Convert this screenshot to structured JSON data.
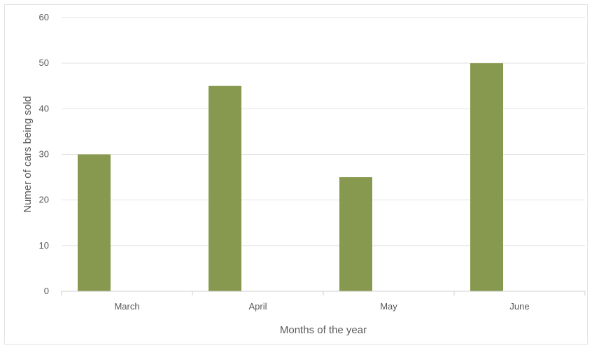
{
  "chart_data": {
    "type": "bar",
    "categories": [
      "March",
      "April",
      "May",
      "June"
    ],
    "series": [
      {
        "values": [
          30,
          45,
          25,
          50
        ]
      }
    ],
    "title": "",
    "xlabel": "Months of the year",
    "ylabel": "Numer of cars being sold",
    "ylim": [
      0,
      60
    ],
    "yticks": [
      0,
      10,
      20,
      30,
      40,
      50,
      60
    ],
    "grid": true,
    "legend": "none",
    "colors": {
      "bar": "#86994F"
    }
  }
}
